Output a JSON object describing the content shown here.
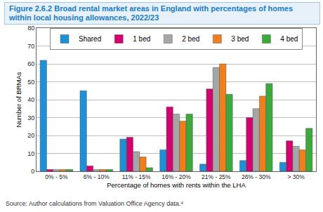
{
  "chart_data": {
    "type": "bar",
    "title": "Figure 2.6.2 Broad rental market areas in England with percentages of homes within local housing allowances, 2022/23",
    "x_label": "Percentage of homes with rents within the LHA",
    "y_label": "Number of BRMAs",
    "source": "Source: Author calculations from Valuation Office Agency data.⁴",
    "categories": [
      "0% - 5%",
      "6% - 10%",
      "11% - 15%",
      "16% - 20%",
      "21% - 25%",
      "26% - 30%",
      "> 30%"
    ],
    "series": [
      {
        "name": "Shared",
        "color": "#1f8fd6",
        "values": [
          62,
          45,
          18,
          12,
          4,
          6,
          5
        ]
      },
      {
        "name": "1 bed",
        "color": "#d4006f",
        "values": [
          1,
          3,
          19,
          36,
          46,
          30,
          17
        ]
      },
      {
        "name": "2 bed",
        "color": "#a6a6a6",
        "values": [
          1,
          1,
          11,
          32,
          58,
          35,
          14
        ]
      },
      {
        "name": "3 bed",
        "color": "#f07e1b",
        "values": [
          1,
          1,
          8,
          28,
          60,
          42,
          12
        ]
      },
      {
        "name": "4 bed",
        "color": "#3aaa3a",
        "values": [
          1,
          1,
          2,
          32,
          43,
          49,
          24
        ]
      }
    ],
    "ylim": [
      0,
      80
    ],
    "yticks": [
      0,
      10,
      20,
      30,
      40,
      50,
      60,
      70,
      80
    ],
    "grid": true,
    "legend": "top"
  }
}
